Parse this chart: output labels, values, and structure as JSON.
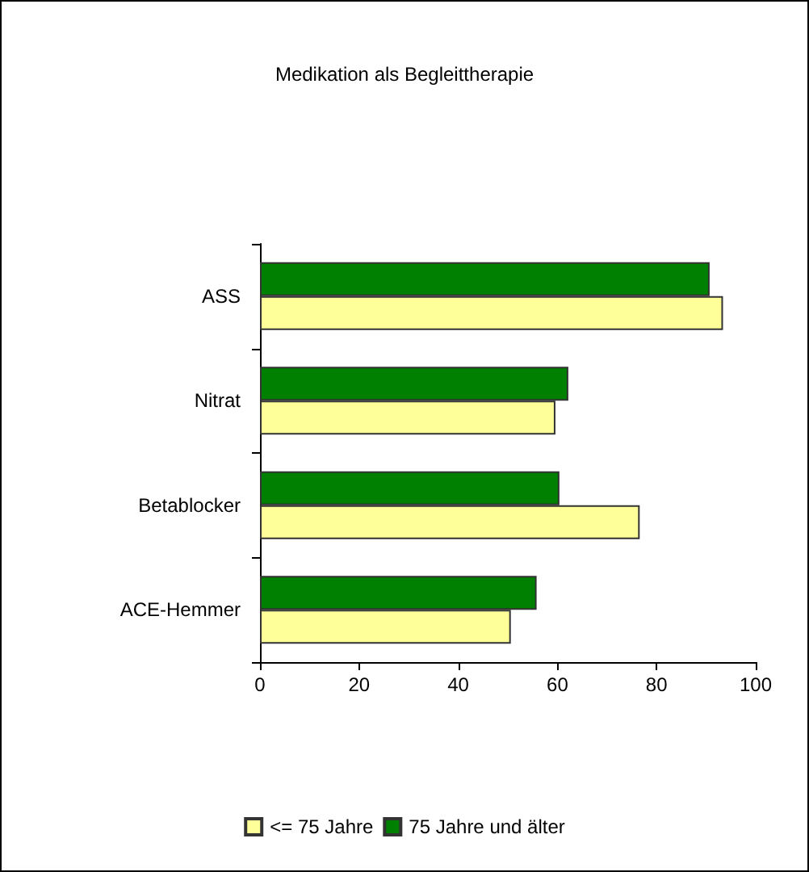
{
  "chart_data": {
    "type": "bar",
    "orientation": "horizontal",
    "title": "Medikation als Begleittherapie",
    "categories": [
      "ASS",
      "Nitrat",
      "Betablocker",
      "ACE-Hemmer"
    ],
    "series": [
      {
        "name": "<= 75 Jahre",
        "color": "#ffff99",
        "values": [
          93.4,
          59.6,
          76.6,
          50.6
        ]
      },
      {
        "name": "75 Jahre und älter",
        "color": "#008000",
        "values": [
          90.7,
          62.2,
          60.4,
          55.8
        ]
      }
    ],
    "xlim": [
      0,
      100
    ],
    "xticks": [
      0,
      20,
      40,
      60,
      80,
      100
    ],
    "grid": false,
    "legend": "bottom"
  }
}
